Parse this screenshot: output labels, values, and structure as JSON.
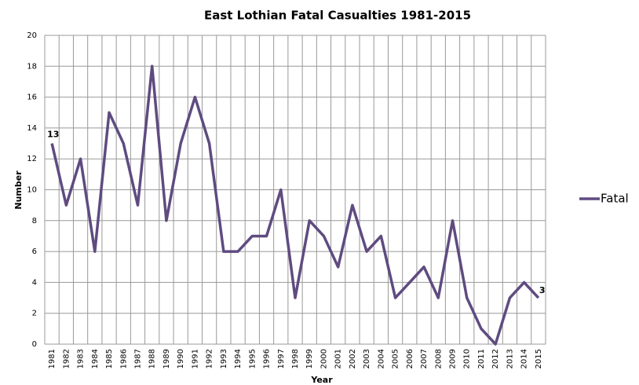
{
  "chart_data": {
    "type": "line",
    "title": "East Lothian Fatal Casualties 1981-2015",
    "xlabel": "Year",
    "ylabel": "Number",
    "categories": [
      "1981",
      "1982",
      "1983",
      "1984",
      "1985",
      "1986",
      "1987",
      "1988",
      "1989",
      "1990",
      "1991",
      "1992",
      "1993",
      "1994",
      "1995",
      "1996",
      "1997",
      "1998",
      "1999",
      "2000",
      "2001",
      "2002",
      "2003",
      "2004",
      "2005",
      "2006",
      "2007",
      "2008",
      "2009",
      "2010",
      "2011",
      "2012",
      "2013",
      "2014",
      "2015"
    ],
    "series": [
      {
        "name": "Fatal",
        "color": "#5f4b80",
        "values": [
          13,
          9,
          12,
          6,
          15,
          13,
          9,
          18,
          8,
          13,
          16,
          13,
          6,
          6,
          7,
          7,
          10,
          3,
          8,
          7,
          5,
          9,
          6,
          7,
          3,
          4,
          5,
          3,
          8,
          3,
          1,
          0,
          3,
          4,
          3
        ]
      }
    ],
    "ylim": [
      0,
      20
    ],
    "yticks": [
      0,
      2,
      4,
      6,
      8,
      10,
      12,
      14,
      16,
      18,
      20
    ],
    "grid": true,
    "legend": "right"
  }
}
